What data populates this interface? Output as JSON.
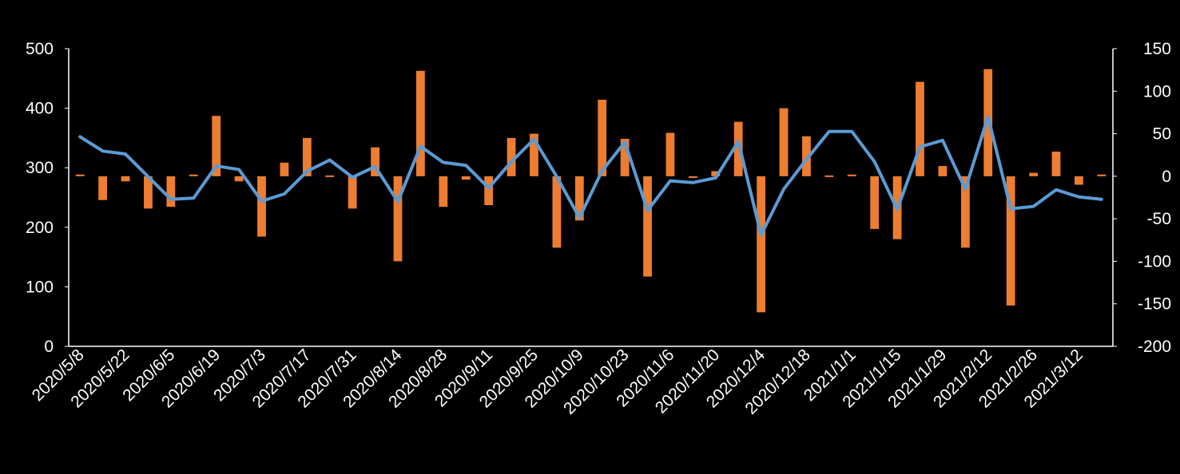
{
  "chart_data": {
    "type": "bar+line",
    "title": "",
    "xlabel": "",
    "ylabel_left": "",
    "ylabel_right": "",
    "legend": "none",
    "grid": false,
    "colors": {
      "bar": "#ED7D31",
      "line": "#5B9BD5",
      "background": "#000000",
      "text": "#FFFFFF",
      "axis": "#FFFFFF"
    },
    "dates": [
      "2020/5/8",
      "2020/5/15",
      "2020/5/22",
      "2020/5/29",
      "2020/6/5",
      "2020/6/12",
      "2020/6/19",
      "2020/6/26",
      "2020/7/3",
      "2020/7/10",
      "2020/7/17",
      "2020/7/24",
      "2020/7/31",
      "2020/8/7",
      "2020/8/14",
      "2020/8/21",
      "2020/8/28",
      "2020/9/4",
      "2020/9/11",
      "2020/9/18",
      "2020/9/25",
      "2020/10/2",
      "2020/10/9",
      "2020/10/16",
      "2020/10/23",
      "2020/10/30",
      "2020/11/6",
      "2020/11/13",
      "2020/11/20",
      "2020/11/27",
      "2020/12/4",
      "2020/12/11",
      "2020/12/18",
      "2020/12/25",
      "2021/1/1",
      "2021/1/8",
      "2021/1/15",
      "2021/1/22",
      "2021/1/29",
      "2021/2/5",
      "2021/2/12",
      "2021/2/19",
      "2021/2/26",
      "2021/3/5",
      "2021/3/12",
      "2021/3/19"
    ],
    "tick_labels": [
      "2020/5/8",
      "2020/5/22",
      "2020/6/5",
      "2020/6/19",
      "2020/7/3",
      "2020/7/17",
      "2020/7/31",
      "2020/8/14",
      "2020/8/28",
      "2020/9/11",
      "2020/9/25",
      "2020/10/9",
      "2020/10/23",
      "2020/11/6",
      "2020/11/20",
      "2020/12/4",
      "2020/12/18",
      "2021/1/1",
      "2021/1/15",
      "2021/1/29",
      "2021/2/12",
      "2021/2/26",
      "2021/3/12"
    ],
    "series": [
      {
        "type": "bar",
        "axis": "right",
        "values": [
          2,
          -28,
          -6,
          -38,
          -36,
          2,
          71,
          -6,
          -71,
          16,
          45,
          0,
          -38,
          34,
          -100,
          124,
          -36,
          -4,
          -34,
          45,
          50,
          -84,
          -52,
          90,
          44,
          -118,
          51,
          -2,
          6,
          64,
          -160,
          80,
          47,
          0,
          2,
          -62,
          -74,
          111,
          12,
          -84,
          126,
          -152,
          4,
          29,
          -10,
          2
        ]
      },
      {
        "type": "line",
        "axis": "left",
        "values": [
          352,
          328,
          323,
          285,
          247,
          249,
          303,
          297,
          244,
          256,
          294,
          313,
          284,
          302,
          243,
          336,
          309,
          304,
          266,
          310,
          348,
          285,
          216,
          295,
          343,
          228,
          278,
          275,
          283,
          344,
          187,
          264,
          314,
          361,
          361,
          310,
          230,
          335,
          346,
          264,
          386,
          231,
          235,
          263,
          251,
          247
        ]
      }
    ],
    "y_left": {
      "min": 0,
      "max": 500,
      "ticks": [
        0,
        100,
        200,
        300,
        400,
        500
      ]
    },
    "y_right": {
      "min": -200,
      "max": 150,
      "ticks": [
        -200,
        -150,
        -100,
        -50,
        0,
        50,
        100,
        150
      ]
    }
  }
}
